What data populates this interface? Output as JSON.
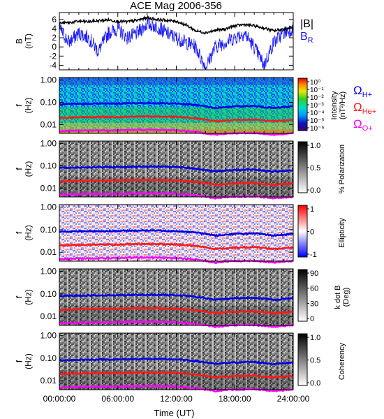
{
  "title": "ACE Mag 2006-356",
  "colors": {
    "B_total": "#000000",
    "B_R": "#1a1aff",
    "H": "#0000e6",
    "He": "#ff1a1a",
    "O": "#ff00ff"
  },
  "time_axis": {
    "label": "Time (UT)",
    "ticks": [
      "00:00:00",
      "06:00:00",
      "12:00:00",
      "18:00:00",
      "24:00:00"
    ],
    "range_hours": [
      0,
      24
    ]
  },
  "freq_axis": {
    "ticks": [
      "1.00",
      "0.10",
      "0.01"
    ],
    "range_hz": [
      0.004,
      1.3
    ],
    "scale": "log"
  },
  "chart_data": [
    {
      "type": "line",
      "panel": "magnetic_field",
      "ylabel": "B (nT)",
      "ylim": [
        -5,
        7.5
      ],
      "yticks": [
        "6",
        "4",
        "2",
        "0",
        "-2",
        "-4"
      ],
      "legend": [
        "|B|",
        "B_R"
      ],
      "series": [
        {
          "name": "|B|",
          "x_hours": [
            0,
            1,
            2,
            3,
            4,
            5,
            6,
            7,
            8,
            9,
            10,
            11,
            12,
            13,
            14,
            15,
            16,
            17,
            18,
            19,
            20,
            21,
            22,
            23,
            24
          ],
          "values": [
            5.2,
            5.3,
            5.6,
            5.5,
            5.7,
            5.9,
            5.6,
            5.5,
            5.8,
            6.4,
            6.0,
            5.8,
            5.6,
            4.8,
            3.5,
            3.1,
            3.6,
            3.9,
            4.6,
            4.9,
            4.6,
            4.1,
            3.5,
            3.9,
            4.3
          ]
        },
        {
          "name": "B_R",
          "x_hours": [
            0,
            1,
            2,
            3,
            4,
            5,
            6,
            7,
            8,
            9,
            10,
            11,
            12,
            13,
            14,
            15,
            16,
            17,
            18,
            19,
            20,
            21,
            22,
            23,
            24
          ],
          "values": [
            4.0,
            1.0,
            3.0,
            2.0,
            -1.0,
            3.0,
            4.0,
            2.0,
            3.0,
            5.0,
            4.5,
            3.0,
            2.0,
            1.0,
            0.0,
            -4.5,
            0.0,
            1.0,
            2.0,
            3.0,
            0.0,
            -4.0,
            1.0,
            3.0,
            4.0
          ]
        }
      ]
    },
    {
      "type": "heatmap",
      "panel": "intensity",
      "ylabel": "f (Hz)",
      "colorbar_label": "Intensity (nT²/Hz)",
      "colorbar_ticks": [
        "10⁰",
        "10⁻¹",
        "10⁻²",
        "10⁻³",
        "10⁻⁴",
        "10⁻⁵",
        "10⁻⁶"
      ],
      "colormap": "rainbow",
      "legend": [
        "ΩH+",
        "ΩHe+",
        "ΩO+"
      ]
    },
    {
      "type": "heatmap",
      "panel": "polarization",
      "ylabel": "f (Hz)",
      "colorbar_label": "% Polarization",
      "colorbar_ticks": [
        "1.0",
        "0.5",
        "0.0"
      ],
      "colormap": "greyscale"
    },
    {
      "type": "heatmap",
      "panel": "ellipticity",
      "ylabel": "f (Hz)",
      "colorbar_label": "Ellipticity",
      "colorbar_ticks": [
        "1",
        "0",
        "-1"
      ],
      "colormap": "blue-white-red"
    },
    {
      "type": "heatmap",
      "panel": "k_dot_B",
      "ylabel": "f (Hz)",
      "colorbar_label": "k dot B (Deg)",
      "colorbar_ticks": [
        "90",
        "60",
        "30",
        "0"
      ],
      "colormap": "greyscale"
    },
    {
      "type": "heatmap",
      "panel": "coherency",
      "ylabel": "f (Hz)",
      "colorbar_label": "Coherency",
      "colorbar_ticks": [
        "1.0",
        "0.5",
        "0.0"
      ],
      "colormap": "greyscale"
    },
    {
      "type": "line",
      "panel": "gyrofrequency_overlays",
      "x_hours": [
        0,
        2,
        4,
        6,
        8,
        10,
        12,
        14,
        16,
        18,
        20,
        22,
        24
      ],
      "series": [
        {
          "name": "ΩH+",
          "values": [
            0.08,
            0.085,
            0.087,
            0.088,
            0.092,
            0.092,
            0.088,
            0.075,
            0.055,
            0.065,
            0.068,
            0.055,
            0.065
          ]
        },
        {
          "name": "ΩHe+",
          "values": [
            0.02,
            0.021,
            0.022,
            0.022,
            0.023,
            0.023,
            0.022,
            0.019,
            0.014,
            0.016,
            0.017,
            0.014,
            0.016
          ]
        },
        {
          "name": "ΩO+",
          "values": [
            0.005,
            0.0053,
            0.0055,
            0.0055,
            0.0058,
            0.0058,
            0.0055,
            0.0047,
            0.0035,
            0.0041,
            0.0042,
            0.0035,
            0.0041
          ]
        }
      ]
    }
  ]
}
